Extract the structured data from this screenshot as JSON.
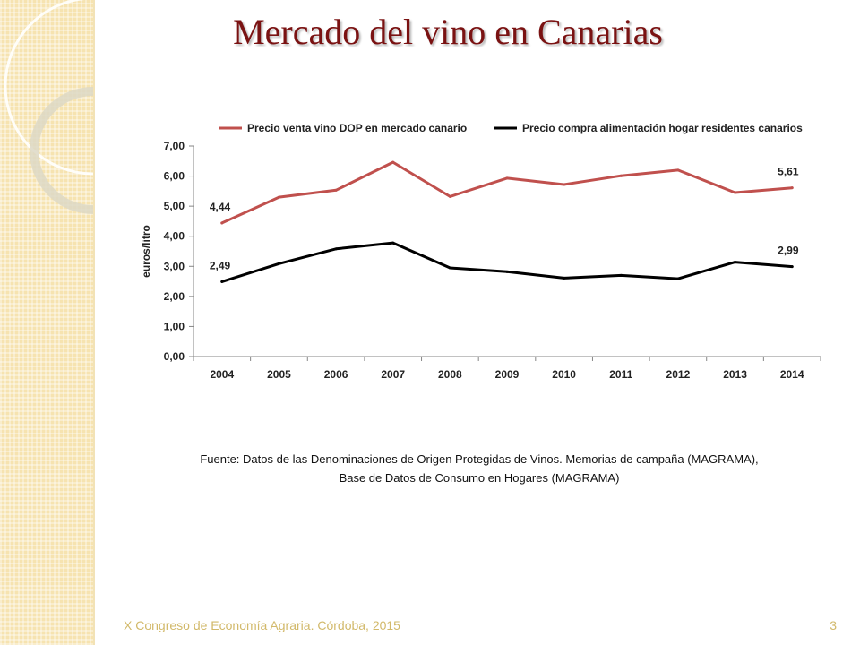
{
  "slide": {
    "title": "Mercado del vino en Canarias",
    "source_line1": "Fuente: Datos de las Denominaciones de Origen Protegidas de Vinos. Memorias de campaña (MAGRAMA),",
    "source_line2": "Base de Datos de Consumo en Hogares (MAGRAMA)",
    "footer": "X Congreso de Economía Agraria. Córdoba, 2015",
    "page_number": "3"
  },
  "chart_data": {
    "type": "line",
    "x": [
      "2004",
      "2005",
      "2006",
      "2007",
      "2008",
      "2009",
      "2010",
      "2011",
      "2012",
      "2013",
      "2014"
    ],
    "ylabel": "euros/litro",
    "ylim": [
      0,
      7
    ],
    "yticks": [
      "0,00",
      "1,00",
      "2,00",
      "3,00",
      "4,00",
      "5,00",
      "6,00",
      "7,00"
    ],
    "legend_position": "top",
    "series": [
      {
        "name": "Precio venta vino DOP en mercado canario",
        "color": "#c0504d",
        "values": [
          4.44,
          5.3,
          5.53,
          6.46,
          5.32,
          5.93,
          5.72,
          6.01,
          6.2,
          5.45,
          5.61
        ],
        "labels": {
          "0": "4,44",
          "10": "5,61"
        }
      },
      {
        "name": "Precio compra alimentación hogar residentes canarios",
        "color": "#000000",
        "values": [
          2.49,
          3.09,
          3.58,
          3.78,
          2.95,
          2.82,
          2.61,
          2.7,
          2.59,
          3.14,
          2.99
        ],
        "labels": {
          "0": "2,49",
          "10": "2,99"
        }
      }
    ]
  }
}
